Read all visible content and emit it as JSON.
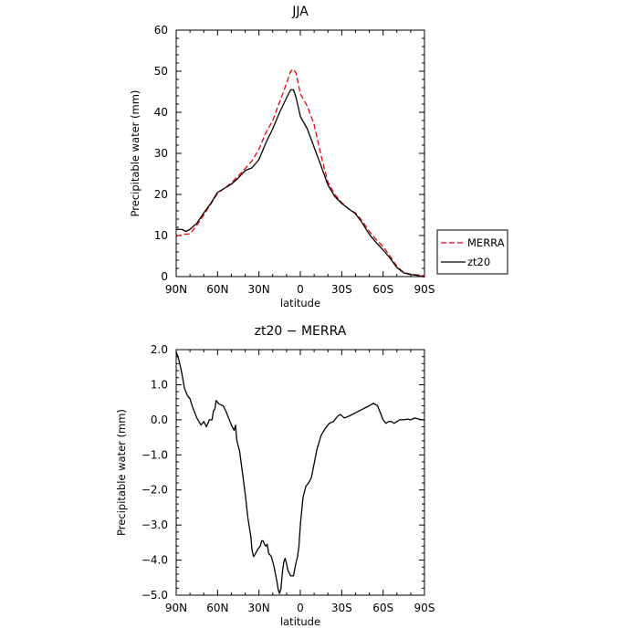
{
  "chart_data": [
    {
      "type": "line",
      "title": "JJA",
      "xlabel": "latitude",
      "ylabel": "Precipitable water (mm)",
      "xlim": [
        90,
        -90
      ],
      "ylim": [
        0,
        60
      ],
      "x_ticks": [
        90,
        60,
        30,
        0,
        -30,
        -60,
        -90
      ],
      "x_tick_labels": [
        "90N",
        "60N",
        "30N",
        "0",
        "30S",
        "60S",
        "90S"
      ],
      "y_ticks": [
        0,
        10,
        20,
        30,
        40,
        50,
        60
      ],
      "y_tick_labels": [
        "0",
        "10",
        "20",
        "30",
        "40",
        "50",
        "60"
      ],
      "legend_position": "right",
      "series": [
        {
          "name": "MERRA",
          "color": "#e8000b",
          "style": "dashed",
          "points": [
            [
              90,
              9.8
            ],
            [
              85,
              10.3
            ],
            [
              80,
              10.4
            ],
            [
              75,
              12.5
            ],
            [
              70,
              15
            ],
            [
              65,
              17.6
            ],
            [
              60,
              20.3
            ],
            [
              55,
              21.5
            ],
            [
              50,
              22.8
            ],
            [
              45,
              24.5
            ],
            [
              40,
              26.3
            ],
            [
              35,
              28.2
            ],
            [
              30,
              31
            ],
            [
              25,
              35
            ],
            [
              20,
              38
            ],
            [
              15,
              42.5
            ],
            [
              10,
              47
            ],
            [
              7,
              50
            ],
            [
              5,
              50.5
            ],
            [
              3,
              49.5
            ],
            [
              0,
              44.5
            ],
            [
              -5,
              41.5
            ],
            [
              -10,
              37
            ],
            [
              -15,
              29.5
            ],
            [
              -20,
              23
            ],
            [
              -25,
              20
            ],
            [
              -30,
              18
            ],
            [
              -35,
              16.5
            ],
            [
              -40,
              15.5
            ],
            [
              -45,
              13.5
            ],
            [
              -50,
              11
            ],
            [
              -55,
              9
            ],
            [
              -60,
              7.3
            ],
            [
              -65,
              5
            ],
            [
              -70,
              2.5
            ],
            [
              -75,
              1
            ],
            [
              -80,
              0.6
            ],
            [
              -85,
              0.4
            ],
            [
              -90,
              0.2
            ]
          ]
        },
        {
          "name": "zt20",
          "color": "#000000",
          "style": "solid",
          "points": [
            [
              90,
              11.5
            ],
            [
              86,
              11.5
            ],
            [
              83,
              11
            ],
            [
              80,
              11.5
            ],
            [
              75,
              13
            ],
            [
              70,
              15.5
            ],
            [
              65,
              17.8
            ],
            [
              60,
              20.5
            ],
            [
              55,
              21.5
            ],
            [
              50,
              22.5
            ],
            [
              45,
              24
            ],
            [
              40,
              25.8
            ],
            [
              35,
              26.5
            ],
            [
              30,
              28.5
            ],
            [
              25,
              32.5
            ],
            [
              20,
              36
            ],
            [
              15,
              40
            ],
            [
              10,
              43.5
            ],
            [
              7,
              45.5
            ],
            [
              5,
              45.5
            ],
            [
              3,
              43.5
            ],
            [
              0,
              39
            ],
            [
              -5,
              36
            ],
            [
              -10,
              31.5
            ],
            [
              -15,
              27
            ],
            [
              -20,
              22.3
            ],
            [
              -25,
              19.5
            ],
            [
              -30,
              17.8
            ],
            [
              -35,
              16.5
            ],
            [
              -40,
              15.3
            ],
            [
              -45,
              13
            ],
            [
              -50,
              10.3
            ],
            [
              -55,
              8.3
            ],
            [
              -60,
              6.5
            ],
            [
              -65,
              4.5
            ],
            [
              -70,
              2.2
            ],
            [
              -75,
              0.9
            ],
            [
              -80,
              0.5
            ],
            [
              -85,
              0.3
            ],
            [
              -90,
              -0.1
            ]
          ]
        }
      ]
    },
    {
      "type": "line",
      "title": "zt20 − MERRA",
      "xlabel": "latitude",
      "ylabel": "Precipitable water (mm)",
      "xlim": [
        90,
        -90
      ],
      "ylim": [
        -5,
        2
      ],
      "x_ticks": [
        90,
        60,
        30,
        0,
        -30,
        -60,
        -90
      ],
      "x_tick_labels": [
        "90N",
        "60N",
        "30N",
        "0",
        "30S",
        "60S",
        "90S"
      ],
      "y_ticks": [
        2,
        1,
        0,
        -1,
        -2,
        -3,
        -4,
        -5
      ],
      "y_tick_labels": [
        "2.0",
        "1.0",
        "0.0",
        "−1.0",
        "−2.0",
        "−3.0",
        "−4.0",
        "−5.0"
      ],
      "series": [
        {
          "name": "",
          "color": "#000000",
          "style": "solid",
          "points": [
            [
              90,
              1.95
            ],
            [
              88,
              1.7
            ],
            [
              86,
              1.35
            ],
            [
              84,
              0.9
            ],
            [
              82,
              0.7
            ],
            [
              80,
              0.6
            ],
            [
              78,
              0.35
            ],
            [
              75,
              0.05
            ],
            [
              72,
              -0.15
            ],
            [
              70,
              -0.05
            ],
            [
              68,
              -0.2
            ],
            [
              66,
              0.0
            ],
            [
              64,
              0.0
            ],
            [
              63,
              0.25
            ],
            [
              62,
              0.3
            ],
            [
              61,
              0.55
            ],
            [
              59,
              0.45
            ],
            [
              56,
              0.4
            ],
            [
              54,
              0.25
            ],
            [
              52,
              0.05
            ],
            [
              50,
              -0.15
            ],
            [
              48,
              -0.3
            ],
            [
              47,
              -0.15
            ],
            [
              46,
              -0.6
            ],
            [
              44,
              -0.9
            ],
            [
              42,
              -1.5
            ],
            [
              40,
              -2.1
            ],
            [
              38,
              -2.8
            ],
            [
              36,
              -3.3
            ],
            [
              35,
              -3.7
            ],
            [
              34,
              -3.9
            ],
            [
              33,
              -3.85
            ],
            [
              31,
              -3.7
            ],
            [
              29,
              -3.6
            ],
            [
              28,
              -3.45
            ],
            [
              27,
              -3.45
            ],
            [
              26,
              -3.55
            ],
            [
              25,
              -3.6
            ],
            [
              24,
              -3.55
            ],
            [
              23,
              -3.8
            ],
            [
              21,
              -3.9
            ],
            [
              19,
              -4.2
            ],
            [
              17,
              -4.6
            ],
            [
              16,
              -4.85
            ],
            [
              15,
              -4.95
            ],
            [
              14,
              -4.8
            ],
            [
              13,
              -4.35
            ],
            [
              12,
              -4.05
            ],
            [
              11,
              -3.95
            ],
            [
              10,
              -4.1
            ],
            [
              9,
              -4.3
            ],
            [
              7,
              -4.45
            ],
            [
              5,
              -4.45
            ],
            [
              3,
              -4.05
            ],
            [
              2,
              -3.9
            ],
            [
              1,
              -3.6
            ],
            [
              0,
              -3.0
            ],
            [
              -2,
              -2.2
            ],
            [
              -4,
              -1.9
            ],
            [
              -6,
              -1.8
            ],
            [
              -8,
              -1.65
            ],
            [
              -10,
              -1.25
            ],
            [
              -12,
              -0.85
            ],
            [
              -15,
              -0.45
            ],
            [
              -18,
              -0.25
            ],
            [
              -21,
              -0.1
            ],
            [
              -24,
              -0.05
            ],
            [
              -27,
              0.1
            ],
            [
              -29,
              0.15
            ],
            [
              -32,
              0.05
            ],
            [
              -35,
              0.1
            ],
            [
              -40,
              0.2
            ],
            [
              -45,
              0.3
            ],
            [
              -50,
              0.4
            ],
            [
              -53,
              0.47
            ],
            [
              -56,
              0.4
            ],
            [
              -58,
              0.2
            ],
            [
              -60,
              0.0
            ],
            [
              -62,
              -0.1
            ],
            [
              -64,
              -0.05
            ],
            [
              -66,
              -0.05
            ],
            [
              -68,
              -0.1
            ],
            [
              -70,
              -0.05
            ],
            [
              -72,
              0.0
            ],
            [
              -75,
              0.0
            ],
            [
              -78,
              0.02
            ],
            [
              -80,
              0.0
            ],
            [
              -83,
              0.05
            ],
            [
              -86,
              0.02
            ],
            [
              -88,
              0.0
            ],
            [
              -90,
              0.0
            ]
          ]
        }
      ]
    }
  ]
}
